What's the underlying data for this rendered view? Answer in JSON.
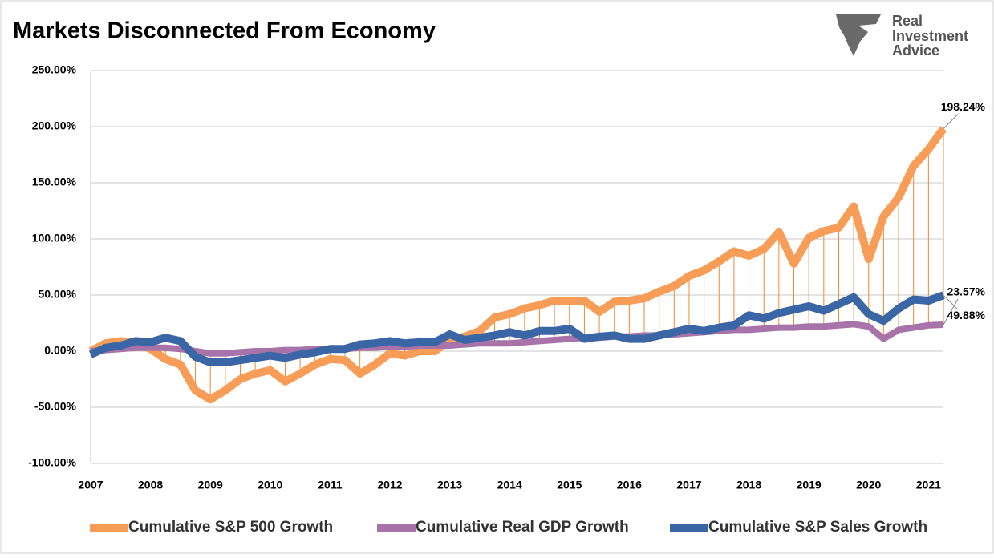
{
  "chart_data": {
    "type": "line",
    "title": "Markets Disconnected From Economy",
    "logo_text": [
      "Real",
      "Investment",
      "Advice"
    ],
    "categories": [
      "2007",
      null,
      null,
      null,
      "2008",
      null,
      null,
      null,
      "2009",
      null,
      null,
      null,
      "2010",
      null,
      null,
      null,
      "2011",
      null,
      null,
      null,
      "2012",
      null,
      null,
      null,
      "2013",
      null,
      null,
      null,
      "2014",
      null,
      null,
      null,
      "2015",
      null,
      null,
      null,
      "2016",
      null,
      null,
      null,
      "2017",
      null,
      null,
      null,
      "2018",
      null,
      null,
      null,
      "2019",
      null,
      null,
      null,
      "2020",
      null,
      null,
      null,
      "2021",
      null
    ],
    "series": [
      {
        "name": "Cumulative S&P 500 Growth",
        "color": "#f79d57",
        "values": [
          0,
          7,
          9,
          7,
          2,
          -7,
          -12,
          -35,
          -43,
          -35,
          -25,
          -20,
          -17,
          -27,
          -20,
          -12,
          -7,
          -8,
          -20,
          -12,
          -2,
          -4,
          0,
          0,
          10,
          13,
          18,
          30,
          33,
          38,
          41,
          45,
          45,
          45,
          35,
          44,
          45,
          47,
          53,
          58,
          67,
          72,
          80,
          89,
          85,
          91,
          106,
          78,
          101,
          107,
          110,
          129,
          82,
          120,
          137,
          165,
          180,
          198.24
        ],
        "value_labels": [
          null,
          null,
          null,
          null,
          null,
          null,
          null,
          null,
          null,
          null,
          null,
          null,
          null,
          null,
          null,
          null,
          null,
          null,
          null,
          null,
          null,
          null,
          null,
          null,
          null,
          null,
          null,
          null,
          null,
          null,
          null,
          null,
          null,
          null,
          null,
          null,
          null,
          null,
          null,
          null,
          null,
          null,
          null,
          null,
          null,
          null,
          null,
          null,
          null,
          null,
          null,
          null,
          null,
          null,
          null,
          null,
          null,
          "198.24%"
        ]
      },
      {
        "name": "Cumulative Real GDP Growth",
        "color": "#a873a8",
        "values": [
          0,
          1,
          2,
          3,
          3,
          3,
          2,
          0,
          -2,
          -2,
          -1,
          0,
          0,
          1,
          1,
          2,
          2,
          2,
          3,
          3,
          4,
          4,
          5,
          5,
          5,
          6,
          7,
          7,
          7,
          8,
          9,
          10,
          11,
          12,
          12,
          13,
          13,
          14,
          14,
          15,
          16,
          17,
          18,
          19,
          19,
          20,
          21,
          21,
          22,
          22,
          23,
          24,
          22,
          11,
          19,
          21,
          23,
          23.57
        ],
        "value_labels": [
          null,
          null,
          null,
          null,
          null,
          null,
          null,
          null,
          null,
          null,
          null,
          null,
          null,
          null,
          null,
          null,
          null,
          null,
          null,
          null,
          null,
          null,
          null,
          null,
          null,
          null,
          null,
          null,
          null,
          null,
          null,
          null,
          null,
          null,
          null,
          null,
          null,
          null,
          null,
          null,
          null,
          null,
          null,
          null,
          null,
          null,
          null,
          null,
          null,
          null,
          null,
          null,
          null,
          null,
          null,
          null,
          null,
          "23.57%"
        ]
      },
      {
        "name": "Cumulative S&P Sales Growth",
        "color": "#3b66a6",
        "values": [
          -3,
          3,
          5,
          9,
          8,
          12,
          9,
          -5,
          -10,
          -10,
          -8,
          -6,
          -4,
          -6,
          -3,
          -1,
          2,
          2,
          6,
          7,
          9,
          7,
          8,
          8,
          15,
          10,
          12,
          14,
          17,
          14,
          18,
          18,
          20,
          11,
          13,
          14,
          11,
          11,
          14,
          17,
          20,
          18,
          21,
          23,
          32,
          29,
          34,
          37,
          40,
          36,
          42,
          48,
          33,
          27,
          38,
          46,
          45,
          49.88
        ],
        "value_labels": [
          null,
          null,
          null,
          null,
          null,
          null,
          null,
          null,
          null,
          null,
          null,
          null,
          null,
          null,
          null,
          null,
          null,
          null,
          null,
          null,
          null,
          null,
          null,
          null,
          null,
          null,
          null,
          null,
          null,
          null,
          null,
          null,
          null,
          null,
          null,
          null,
          null,
          null,
          null,
          null,
          null,
          null,
          null,
          null,
          null,
          null,
          null,
          null,
          null,
          null,
          null,
          null,
          null,
          null,
          null,
          null,
          null,
          "49.88%"
        ]
      }
    ],
    "ylim": [
      -100,
      250
    ],
    "yticks": [
      {
        "value": -100,
        "label": "-100.00%"
      },
      {
        "value": -50,
        "label": "-50.00%"
      },
      {
        "value": 0,
        "label": "0.00%"
      },
      {
        "value": 50,
        "label": "50.00%"
      },
      {
        "value": 100,
        "label": "100.00%"
      },
      {
        "value": 150,
        "label": "150.00%"
      },
      {
        "value": 200,
        "label": "200.00%"
      },
      {
        "value": 250,
        "label": "250.00%"
      }
    ],
    "grid": true,
    "drop_lines": true,
    "legend": "bottom"
  }
}
